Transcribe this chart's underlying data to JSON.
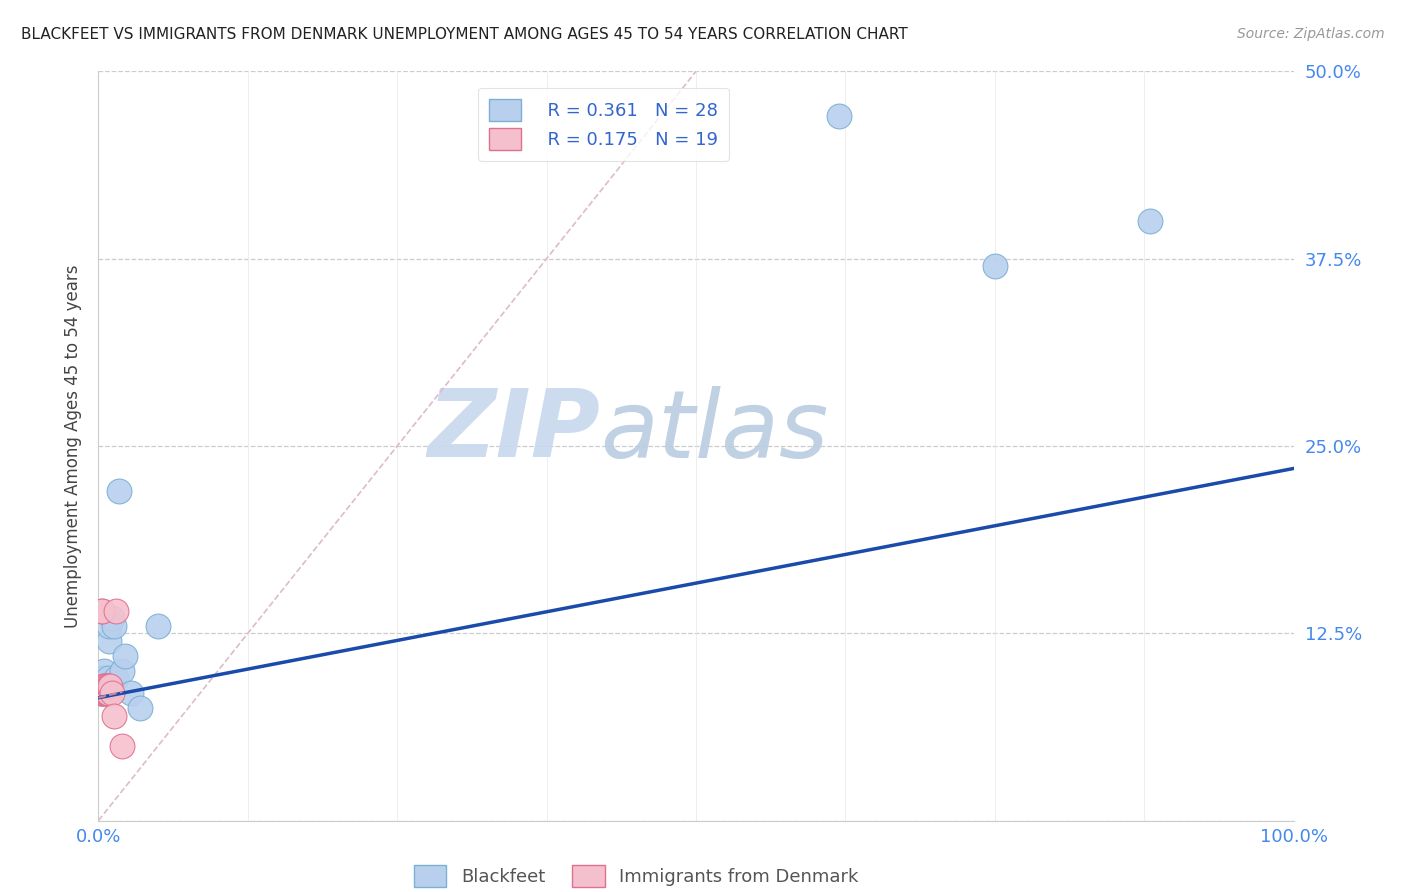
{
  "title": "BLACKFEET VS IMMIGRANTS FROM DENMARK UNEMPLOYMENT AMONG AGES 45 TO 54 YEARS CORRELATION CHART",
  "source": "Source: ZipAtlas.com",
  "ylabel_label": "Unemployment Among Ages 45 to 54 years",
  "xlim": [
    0.0,
    1.0
  ],
  "ylim": [
    0.0,
    0.5
  ],
  "xticks": [
    0.0,
    0.125,
    0.25,
    0.375,
    0.5,
    0.625,
    0.75,
    0.875,
    1.0
  ],
  "xticklabels": [
    "0.0%",
    "",
    "",
    "",
    "",
    "",
    "",
    "",
    "100.0%"
  ],
  "yticks": [
    0.0,
    0.125,
    0.25,
    0.375,
    0.5
  ],
  "yticklabels": [
    "",
    "12.5%",
    "25.0%",
    "37.5%",
    "50.0%"
  ],
  "background_color": "#ffffff",
  "grid_color": "#cccccc",
  "watermark_line1": "ZIP",
  "watermark_line2": "atlas",
  "watermark_color": "#cfe0f5",
  "blackfeet_color": "#b8d0ee",
  "blackfeet_edge_color": "#7bafd4",
  "denmark_color": "#f5c0cd",
  "denmark_edge_color": "#e07090",
  "trend_blue_color": "#1a4aaa",
  "trend_pink_color": "#d08898",
  "diagonal_color": "#ddbbcc",
  "legend_r1": "R = 0.361",
  "legend_n1": "N = 28",
  "legend_r2": "R = 0.175",
  "legend_n2": "N = 19",
  "blackfeet_x": [
    0.002,
    0.003,
    0.003,
    0.004,
    0.004,
    0.005,
    0.005,
    0.005,
    0.006,
    0.007,
    0.007,
    0.008,
    0.008,
    0.009,
    0.009,
    0.01,
    0.011,
    0.013,
    0.015,
    0.017,
    0.02,
    0.022,
    0.027,
    0.035,
    0.05,
    0.62,
    0.75,
    0.88
  ],
  "blackfeet_y": [
    0.085,
    0.09,
    0.095,
    0.085,
    0.09,
    0.09,
    0.095,
    0.1,
    0.09,
    0.085,
    0.09,
    0.09,
    0.095,
    0.12,
    0.13,
    0.09,
    0.135,
    0.13,
    0.095,
    0.22,
    0.1,
    0.11,
    0.085,
    0.075,
    0.13,
    0.47,
    0.37,
    0.4
  ],
  "denmark_x": [
    0.002,
    0.003,
    0.003,
    0.004,
    0.004,
    0.005,
    0.005,
    0.006,
    0.006,
    0.007,
    0.007,
    0.008,
    0.008,
    0.009,
    0.01,
    0.011,
    0.013,
    0.015,
    0.02
  ],
  "denmark_y": [
    0.085,
    0.14,
    0.14,
    0.085,
    0.09,
    0.09,
    0.085,
    0.085,
    0.09,
    0.085,
    0.085,
    0.085,
    0.09,
    0.09,
    0.09,
    0.085,
    0.07,
    0.14,
    0.05
  ],
  "blackfeet_trend": [
    0.0,
    1.0,
    0.082,
    0.235
  ],
  "denmark_trend": [
    0.0,
    0.02,
    0.082,
    0.086
  ],
  "diagonal_line": [
    0.0,
    0.5,
    0.0,
    0.5
  ]
}
